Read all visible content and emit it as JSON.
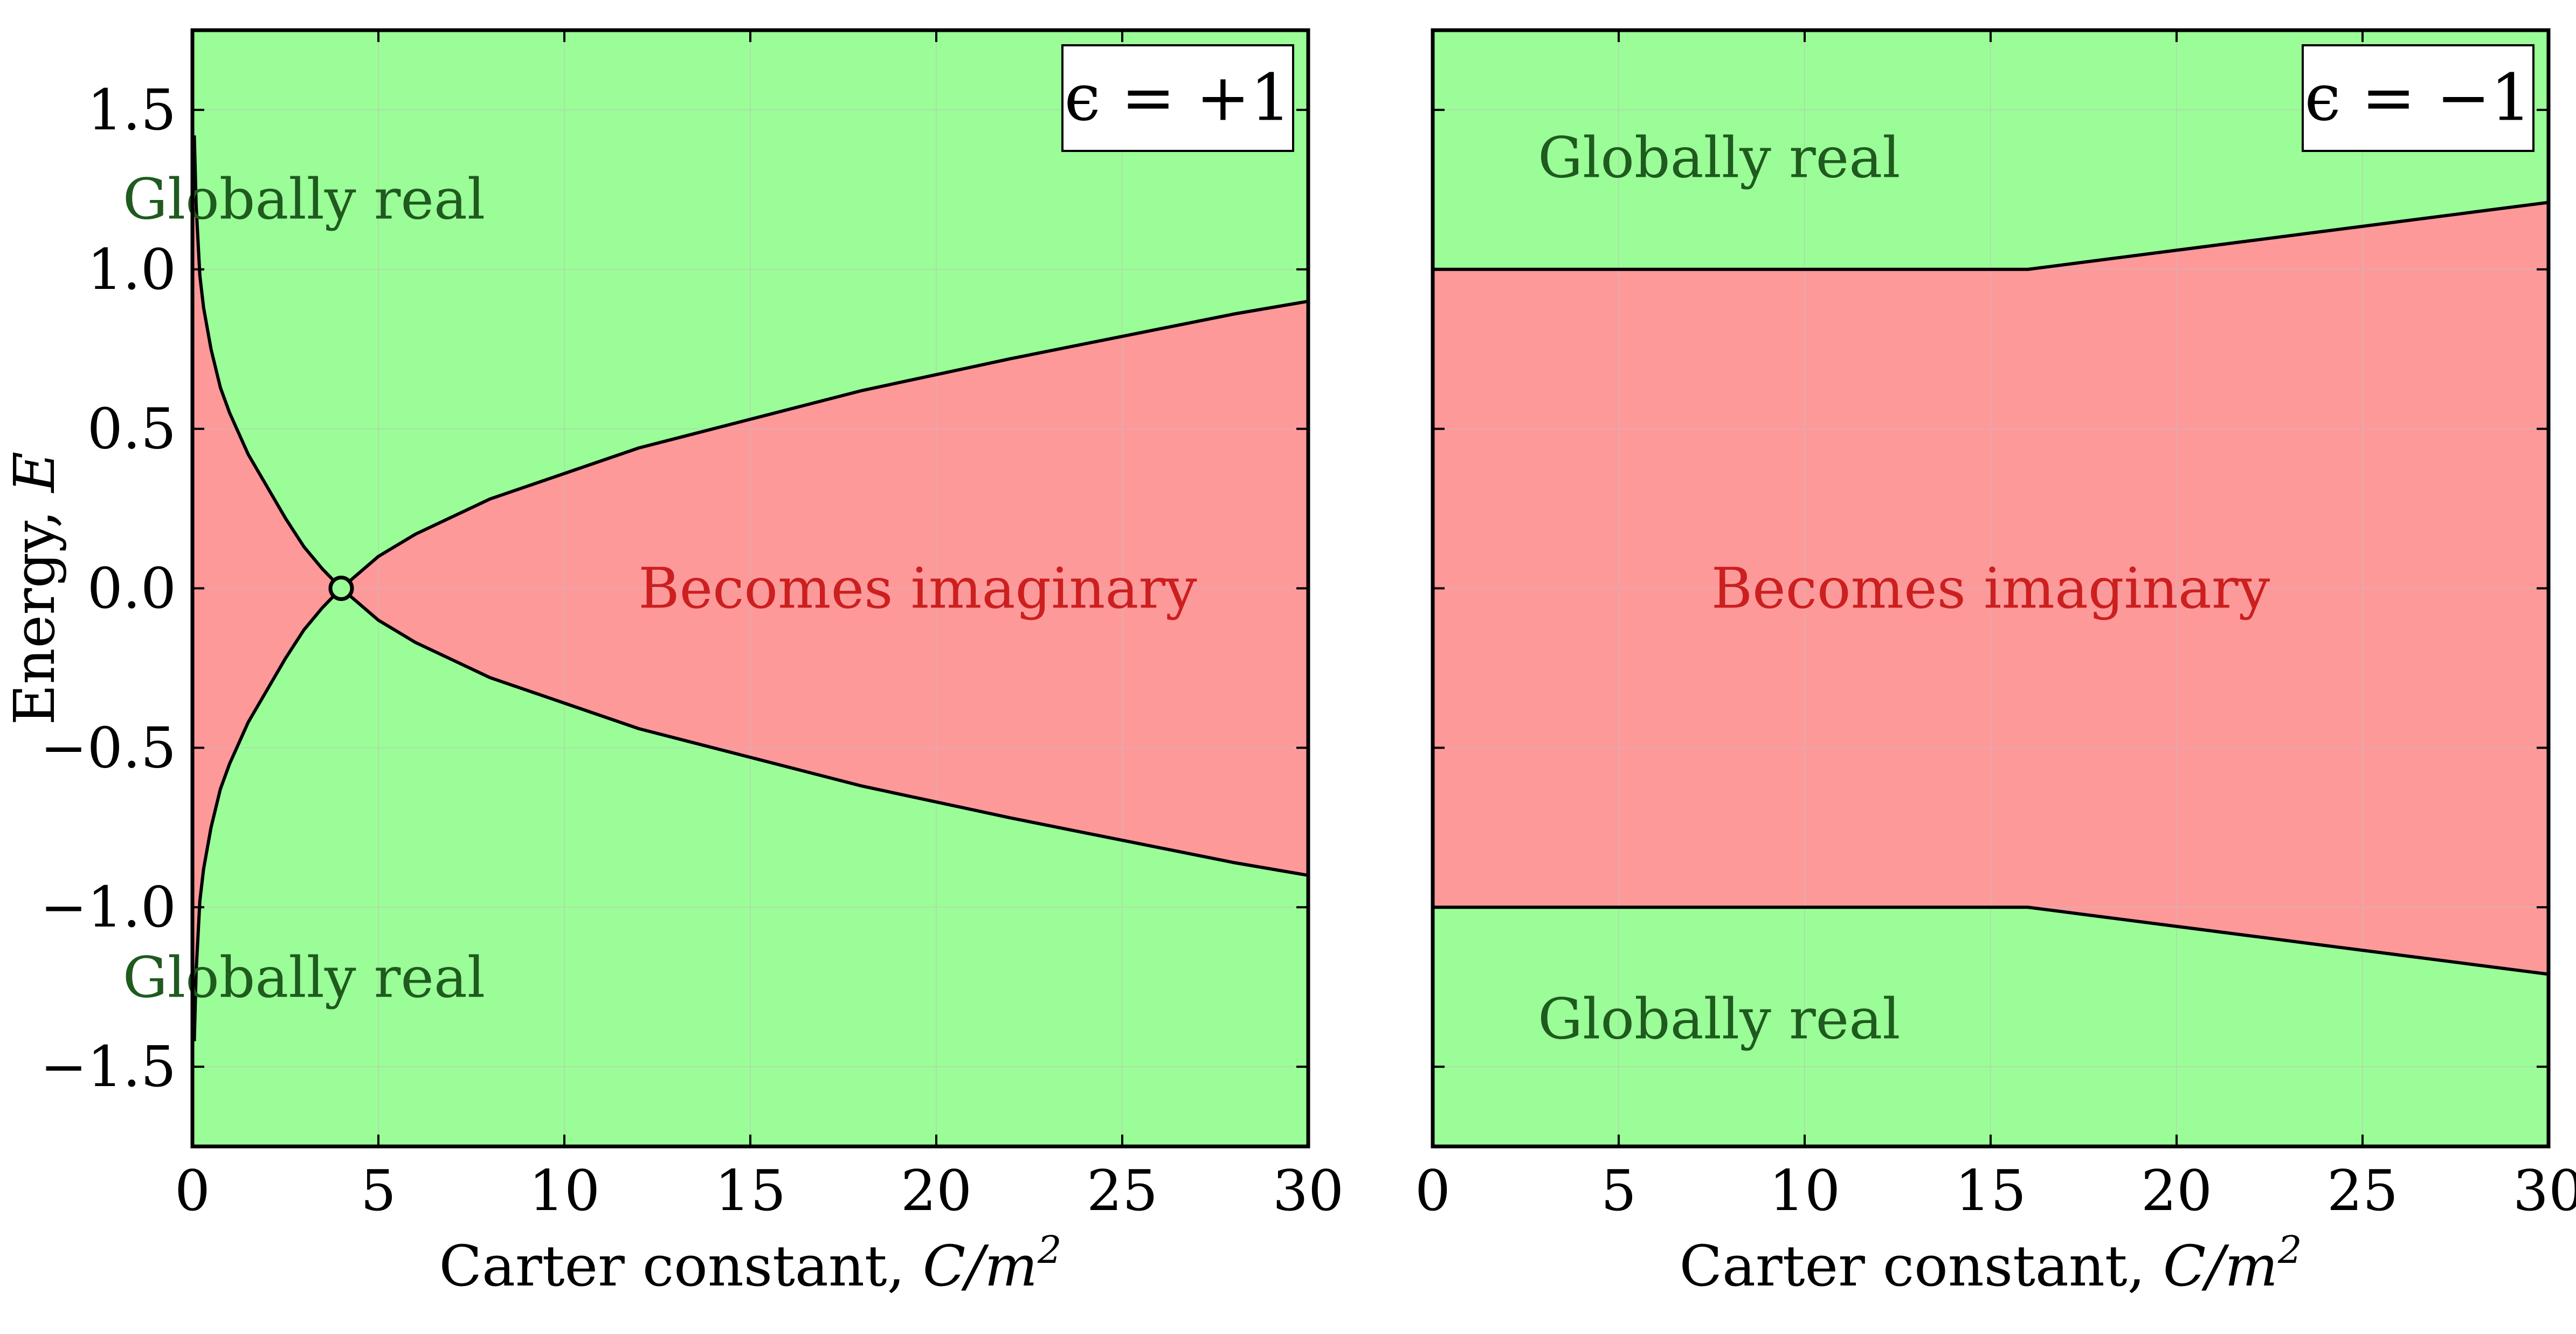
{
  "colors": {
    "real": "#9bfd97",
    "imaginary": "#fe999a",
    "real_text": "#1f5a1f",
    "imaginary_text": "#cc1f1f",
    "boundary": "#000000",
    "grid": "#bfbfbf"
  },
  "chart_data": [
    {
      "type": "area",
      "panel": "left",
      "legend": "ϵ = +1",
      "xlabel": "Carter constant, C/m²",
      "xlabel_plain": "Carter constant, ",
      "xlabel_math": "C/m",
      "xlabel_sup": "2",
      "ylabel": "Energy, E",
      "ylabel_plain": "Energy, ",
      "ylabel_math": "E",
      "xlim": [
        0,
        30
      ],
      "ylim": [
        -1.75,
        1.75
      ],
      "x_ticks": [
        "0",
        "5",
        "10",
        "15",
        "20",
        "25",
        "30"
      ],
      "y_ticks": [
        "1.5",
        "1.0",
        "0.5",
        "0.0",
        "−0.5",
        "−1.0",
        "−1.5"
      ],
      "grid": true,
      "crossing_point": {
        "x": 4,
        "y": 0
      },
      "boundary": {
        "x": [
          0.05,
          0.1,
          0.2,
          0.3,
          0.5,
          0.75,
          1,
          1.5,
          2,
          2.5,
          3,
          3.5,
          4,
          5,
          6,
          8,
          10,
          12,
          15,
          18,
          20,
          22,
          25,
          28,
          30
        ],
        "upper": [
          1.42,
          1.2,
          0.98,
          0.88,
          0.75,
          0.63,
          0.55,
          0.42,
          0.32,
          0.22,
          0.13,
          0.06,
          0.0,
          0.1,
          0.17,
          0.28,
          0.36,
          0.44,
          0.53,
          0.62,
          0.67,
          0.72,
          0.79,
          0.86,
          0.9
        ],
        "lower": [
          -1.42,
          -1.2,
          -0.98,
          -0.88,
          -0.75,
          -0.63,
          -0.55,
          -0.42,
          -0.32,
          -0.22,
          -0.13,
          -0.06,
          0.0,
          -0.1,
          -0.17,
          -0.28,
          -0.36,
          -0.44,
          -0.53,
          -0.62,
          -0.67,
          -0.72,
          -0.79,
          -0.86,
          -0.9
        ]
      },
      "regions": [
        {
          "label": "Globally real",
          "kind": "real",
          "x": 3,
          "y": 1.22
        },
        {
          "label": "Becomes imaginary",
          "kind": "imaginary",
          "x": 19.5,
          "y": 0.0
        },
        {
          "label": "Globally real",
          "kind": "real",
          "x": 3,
          "y": -1.22
        }
      ]
    },
    {
      "type": "area",
      "panel": "right",
      "legend": "ϵ = −1",
      "xlabel": "Carter constant, C/m²",
      "xlabel_plain": "Carter constant, ",
      "xlabel_math": "C/m",
      "xlabel_sup": "2",
      "xlim": [
        0,
        30
      ],
      "ylim": [
        -1.75,
        1.75
      ],
      "x_ticks": [
        "0",
        "5",
        "10",
        "15",
        "20",
        "25",
        "30"
      ],
      "grid": true,
      "boundary": {
        "x": [
          0,
          4,
          8,
          12,
          16,
          18,
          20,
          22,
          24,
          26,
          28,
          30
        ],
        "upper": [
          1.0,
          1.0,
          1.0,
          1.0,
          1.0,
          1.03,
          1.06,
          1.09,
          1.12,
          1.15,
          1.18,
          1.21
        ],
        "lower": [
          -1.0,
          -1.0,
          -1.0,
          -1.0,
          -1.0,
          -1.03,
          -1.06,
          -1.09,
          -1.12,
          -1.15,
          -1.18,
          -1.21
        ]
      },
      "regions": [
        {
          "label": "Globally real",
          "kind": "real",
          "x": 7.7,
          "y": 1.35
        },
        {
          "label": "Becomes imaginary",
          "kind": "imaginary",
          "x": 15,
          "y": 0.0
        },
        {
          "label": "Globally real",
          "kind": "real",
          "x": 7.7,
          "y": -1.35
        }
      ]
    }
  ]
}
